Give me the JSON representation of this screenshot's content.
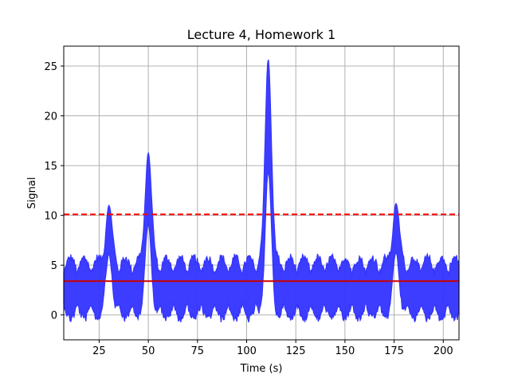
{
  "chart_data": {
    "type": "line",
    "title": "Lecture 4, Homework 1",
    "xlabel": "Time (s)",
    "ylabel": "Signal",
    "xlim": [
      7,
      208
    ],
    "ylim": [
      -2.5,
      27
    ],
    "xticks": [
      25,
      50,
      75,
      100,
      125,
      150,
      175,
      200
    ],
    "yticks": [
      0,
      5,
      10,
      15,
      20,
      25
    ],
    "grid": true,
    "series": [
      {
        "kind": "noisy-signal",
        "color": "#3333ff",
        "baseline_range": [
          -0.8,
          6.2
        ],
        "peaks": [
          {
            "t": 30,
            "max": 11.0
          },
          {
            "t": 50,
            "max": 16.3
          },
          {
            "t": 111,
            "max": 25.7
          },
          {
            "t": 176,
            "max": 11.2
          }
        ]
      }
    ],
    "hlines": [
      {
        "y": 10.1,
        "color": "#ff0000",
        "style": "dashed"
      },
      {
        "y": 3.4,
        "color": "#cc0000",
        "style": "solid"
      }
    ]
  }
}
